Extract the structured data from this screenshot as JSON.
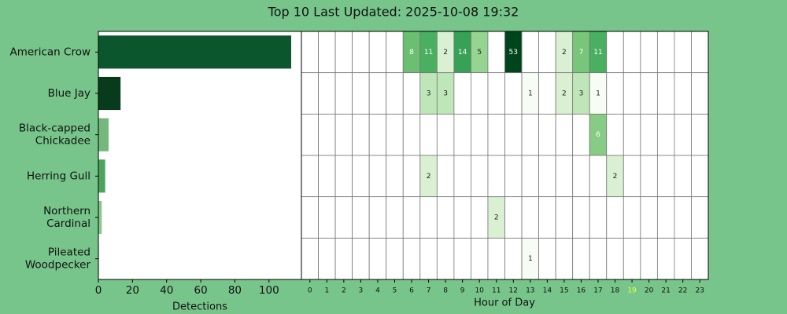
{
  "chart_data": [
    {
      "type": "barh",
      "title": "Top 10 Last Updated: 2025-10-08 19:32",
      "categories": [
        "American Crow",
        "Blue Jay",
        "Black-capped\nChickadee",
        "Herring Gull",
        "Northern\nCardinal",
        "Pileated\nWoodpecker"
      ],
      "values": [
        113,
        13,
        6,
        4,
        2,
        1
      ],
      "colors": [
        "#0b562c",
        "#083b1c",
        "#74b87c",
        "#4ea45f",
        "#8cc98f",
        "#f4fbf2"
      ],
      "xlim": [
        0,
        119
      ],
      "xticks": [
        0,
        20,
        40,
        60,
        80,
        100
      ],
      "xlabel": "Detections"
    },
    {
      "type": "heatmap",
      "x": [
        0,
        1,
        2,
        3,
        4,
        5,
        6,
        7,
        8,
        9,
        10,
        11,
        12,
        13,
        14,
        15,
        16,
        17,
        18,
        19,
        20,
        21,
        22,
        23
      ],
      "xlabel": "Hour of Day",
      "cmap": "Greens",
      "color_scale": "log",
      "highlight_tick": 19,
      "highlight_color": "#f0ff40",
      "values": [
        [
          null,
          null,
          null,
          null,
          null,
          null,
          8,
          11,
          2,
          14,
          5,
          null,
          53,
          null,
          null,
          2,
          7,
          11,
          null,
          null,
          null,
          null,
          null,
          null
        ],
        [
          null,
          null,
          null,
          null,
          null,
          null,
          null,
          3,
          3,
          null,
          null,
          null,
          null,
          1,
          null,
          2,
          3,
          1,
          null,
          null,
          null,
          null,
          null,
          null
        ],
        [
          null,
          null,
          null,
          null,
          null,
          null,
          null,
          null,
          null,
          null,
          null,
          null,
          null,
          null,
          null,
          null,
          null,
          6,
          null,
          null,
          null,
          null,
          null,
          null
        ],
        [
          null,
          null,
          null,
          null,
          null,
          null,
          null,
          2,
          null,
          null,
          null,
          null,
          null,
          null,
          null,
          null,
          null,
          null,
          2,
          null,
          null,
          null,
          null,
          null
        ],
        [
          null,
          null,
          null,
          null,
          null,
          null,
          null,
          null,
          null,
          null,
          null,
          2,
          null,
          null,
          null,
          null,
          null,
          null,
          null,
          null,
          null,
          null,
          null,
          null
        ],
        [
          null,
          null,
          null,
          null,
          null,
          null,
          null,
          null,
          null,
          null,
          null,
          null,
          null,
          1,
          null,
          null,
          null,
          null,
          null,
          null,
          null,
          null,
          null,
          null
        ]
      ]
    }
  ]
}
